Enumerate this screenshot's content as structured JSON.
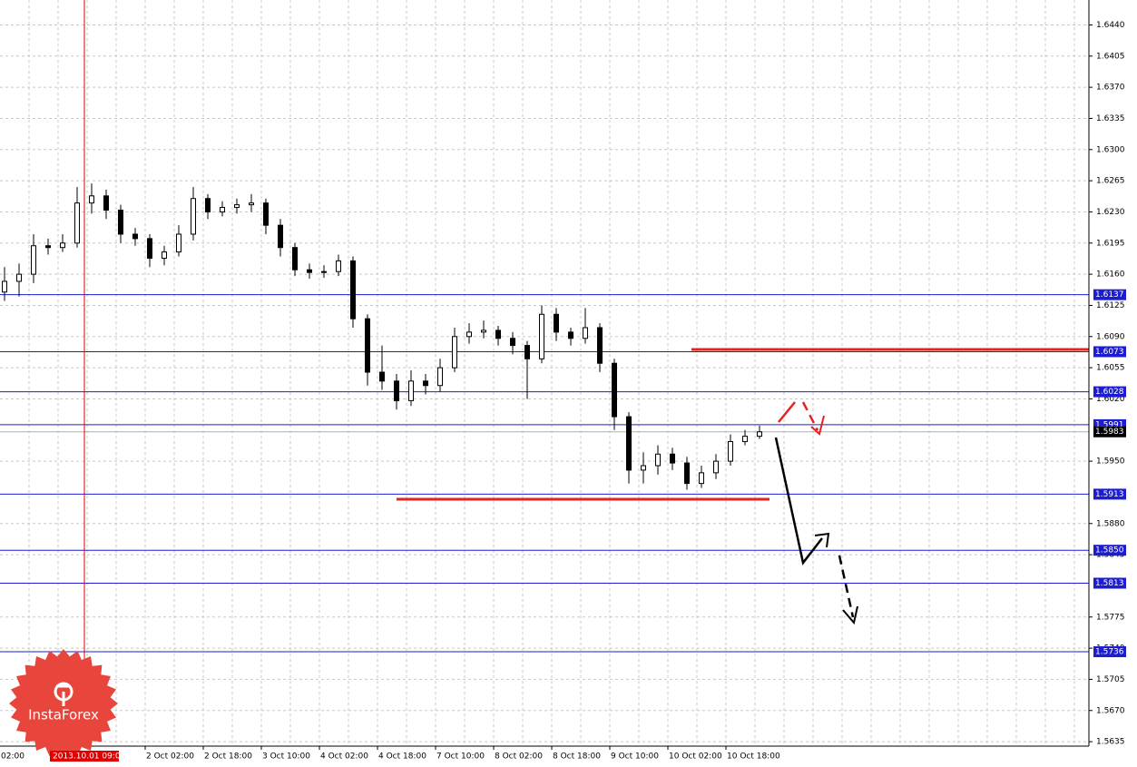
{
  "chart_data": {
    "type": "candlestick",
    "open": [
      1.614,
      1.6152,
      1.616,
      1.6192,
      1.619,
      1.6195,
      1.624,
      1.6248,
      1.6232,
      1.6205,
      1.62,
      1.6178,
      1.6185,
      1.6205,
      1.6245,
      1.623,
      1.6235,
      1.6238,
      1.624,
      1.6215,
      1.619,
      1.6165,
      1.6162,
      1.6163,
      1.6175,
      1.611,
      1.605,
      1.604,
      1.6018,
      1.604,
      1.6035,
      1.6055,
      1.609,
      1.6095,
      1.6097,
      1.6088,
      1.608,
      1.6065,
      1.6115,
      1.6095,
      1.6088,
      1.61,
      1.606,
      1.6,
      1.594,
      1.5945,
      1.5958,
      1.5948,
      1.5925,
      1.5937,
      1.595,
      1.5972,
      1.5978
    ],
    "high": [
      1.6168,
      1.6172,
      1.6205,
      1.62,
      1.6205,
      1.6258,
      1.6262,
      1.6255,
      1.6238,
      1.6212,
      1.6205,
      1.6192,
      1.6215,
      1.6258,
      1.625,
      1.6242,
      1.6245,
      1.625,
      1.6245,
      1.6222,
      1.6195,
      1.6172,
      1.617,
      1.6182,
      1.618,
      1.6115,
      1.608,
      1.6048,
      1.6052,
      1.6048,
      1.6065,
      1.61,
      1.6105,
      1.6108,
      1.6102,
      1.6095,
      1.6085,
      1.6125,
      1.6122,
      1.61,
      1.6122,
      1.6105,
      1.6065,
      1.6005,
      1.596,
      1.5968,
      1.5965,
      1.5955,
      1.5945,
      1.5958,
      1.598,
      1.5985,
      1.599
    ],
    "low": [
      1.613,
      1.6135,
      1.615,
      1.6182,
      1.6185,
      1.619,
      1.6228,
      1.6222,
      1.6195,
      1.6192,
      1.6168,
      1.617,
      1.618,
      1.6198,
      1.6222,
      1.6225,
      1.6228,
      1.623,
      1.6205,
      1.618,
      1.6158,
      1.6155,
      1.6156,
      1.6158,
      1.61,
      1.6035,
      1.603,
      1.6008,
      1.6012,
      1.6025,
      1.6028,
      1.605,
      1.6082,
      1.6088,
      1.608,
      1.607,
      1.602,
      1.606,
      1.6085,
      1.608,
      1.6082,
      1.605,
      1.5985,
      1.5925,
      1.5925,
      1.5935,
      1.594,
      1.5918,
      1.592,
      1.593,
      1.5945,
      1.5968,
      1.5975
    ],
    "close": [
      1.6152,
      1.616,
      1.6192,
      1.619,
      1.6195,
      1.624,
      1.6248,
      1.6232,
      1.6205,
      1.62,
      1.6178,
      1.6185,
      1.6205,
      1.6245,
      1.623,
      1.6235,
      1.6238,
      1.624,
      1.6215,
      1.619,
      1.6165,
      1.6162,
      1.6163,
      1.6175,
      1.611,
      1.605,
      1.604,
      1.6018,
      1.604,
      1.6035,
      1.6055,
      1.609,
      1.6095,
      1.6097,
      1.6088,
      1.608,
      1.6065,
      1.6115,
      1.6095,
      1.6088,
      1.61,
      1.606,
      1.6,
      1.594,
      1.5945,
      1.5958,
      1.5948,
      1.5925,
      1.5937,
      1.595,
      1.5972,
      1.5978,
      1.5983
    ],
    "up_color": "#ffffff",
    "down_color": "#000000",
    "ylim": [
      1.563,
      1.6468
    ],
    "yticks": [
      {
        "value": 1.644,
        "label": "1.6440"
      },
      {
        "value": 1.6405,
        "label": "1.6405"
      },
      {
        "value": 1.637,
        "label": "1.6370"
      },
      {
        "value": 1.6335,
        "label": "1.6335"
      },
      {
        "value": 1.63,
        "label": "1.6300"
      },
      {
        "value": 1.6265,
        "label": "1.6265"
      },
      {
        "value": 1.623,
        "label": "1.6230"
      },
      {
        "value": 1.6195,
        "label": "1.6195"
      },
      {
        "value": 1.616,
        "label": "1.6160"
      },
      {
        "value": 1.6125,
        "label": "1.6125"
      },
      {
        "value": 1.609,
        "label": "1.6090"
      },
      {
        "value": 1.6055,
        "label": "1.6055"
      },
      {
        "value": 1.602,
        "label": "1.6020"
      },
      {
        "value": 1.595,
        "label": "1.5950"
      },
      {
        "value": 1.588,
        "label": "1.5880"
      },
      {
        "value": 1.5845,
        "label": "1.5845"
      },
      {
        "value": 1.5775,
        "label": "1.5775"
      },
      {
        "value": 1.574,
        "label": "1.5740"
      },
      {
        "value": 1.5705,
        "label": "1.5705"
      },
      {
        "value": 1.567,
        "label": "1.5670"
      },
      {
        "value": 1.5635,
        "label": "1.5635"
      }
    ],
    "grid": true,
    "levels": [
      {
        "value": 1.6137,
        "label": "1.6137"
      },
      {
        "value": 1.6073,
        "label": "1.6073"
      },
      {
        "value": 1.6028,
        "label": "1.6028"
      },
      {
        "value": 1.5991,
        "label": "1.5991"
      },
      {
        "value": 1.5913,
        "label": "1.5913"
      },
      {
        "value": 1.585,
        "label": "1.5850"
      },
      {
        "value": 1.5813,
        "label": "1.5813"
      },
      {
        "value": 1.5736,
        "label": "1.5736"
      }
    ],
    "level_color": "#1c1cd0",
    "current_price": {
      "value": 1.5983,
      "label": "1.5983"
    },
    "xticks": [
      "02:00",
      "2 Oct 02:00",
      "2 Oct 18:00",
      "3 Oct 10:00",
      "4 Oct 02:00",
      "4 Oct 18:00",
      "7 Oct 10:00",
      "8 Oct 02:00",
      "8 Oct 18:00",
      "9 Oct 10:00",
      "10 Oct 02:00",
      "10 Oct 18:00"
    ],
    "crosshair_label": "2013.10.01 09:00",
    "watermark": "InstaForex"
  }
}
